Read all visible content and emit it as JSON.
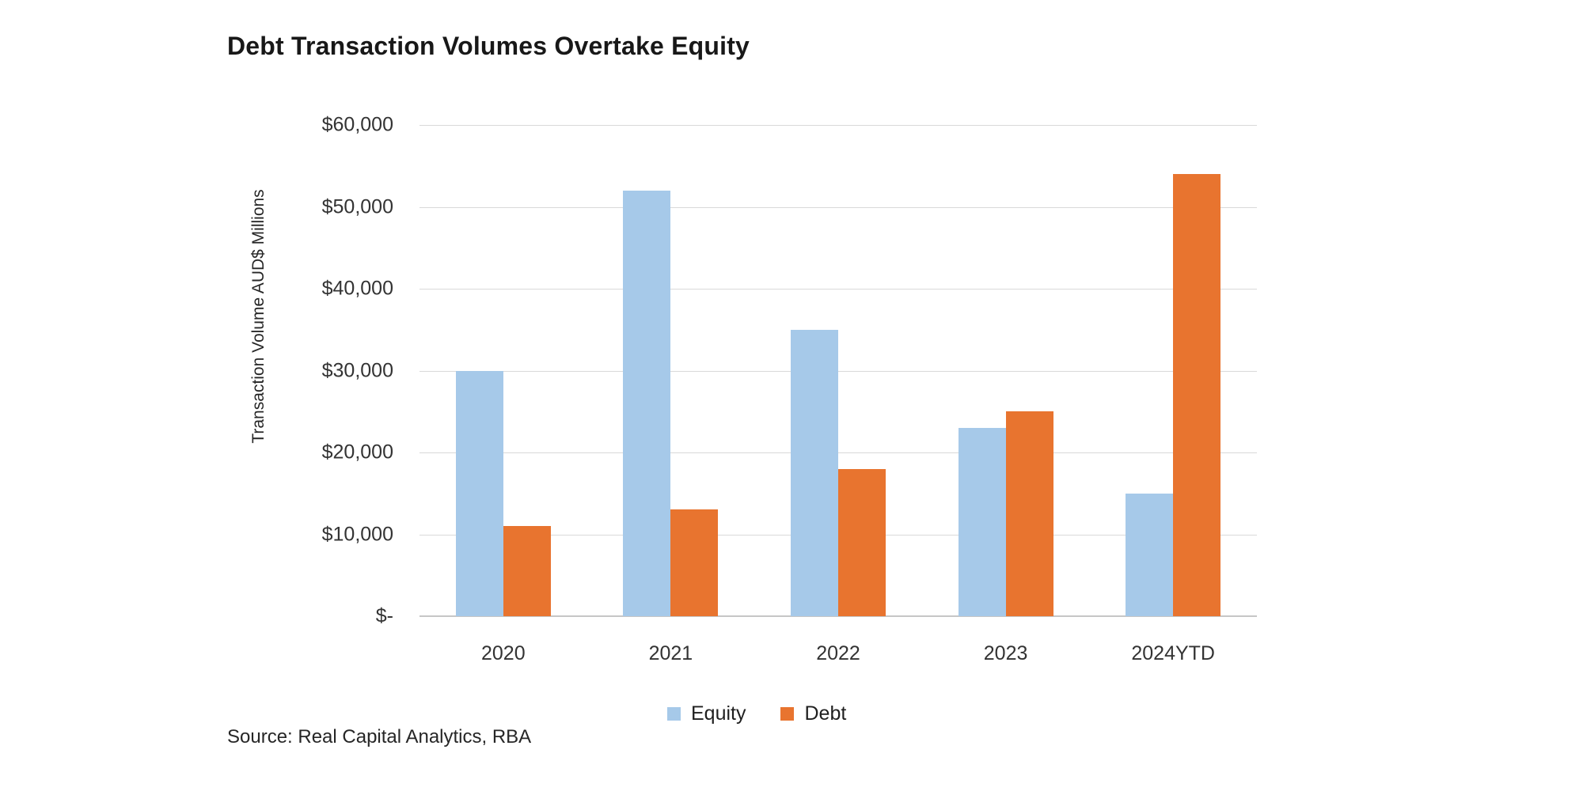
{
  "title": "Debt Transaction Volumes Overtake Equity",
  "source_note": "Source: Real Capital Analytics, RBA",
  "colors": {
    "equity": "#A6C9E9",
    "debt": "#E8742F",
    "gridline": "#D9D9D9",
    "axis_line": "#C6C6C6",
    "title_text": "#181818",
    "tick_text": "#333333"
  },
  "legend": {
    "items": [
      {
        "label": "Equity",
        "color": "#A6C9E9"
      },
      {
        "label": "Debt",
        "color": "#E8742F"
      }
    ]
  },
  "chart_data": {
    "type": "bar",
    "title": "Debt Transaction Volumes Overtake Equity",
    "categories": [
      "2020",
      "2021",
      "2022",
      "2023",
      "2024YTD"
    ],
    "series": [
      {
        "name": "Equity",
        "color": "#A6C9E9",
        "values": [
          30000,
          52000,
          35000,
          23000,
          15000
        ]
      },
      {
        "name": "Debt",
        "color": "#E8742F",
        "values": [
          11000,
          13000,
          18000,
          25000,
          54000
        ]
      }
    ],
    "xlabel": "",
    "ylabel": "Transaction Volume AUD$ Millions",
    "ylim": [
      0,
      60000
    ],
    "ytick_step": 10000,
    "ytick_labels_bottom_to_top": [
      "$-",
      "$10,000",
      "$20,000",
      "$30,000",
      "$40,000",
      "$50,000",
      "$60,000"
    ],
    "grid": true,
    "legend_position": "bottom-center"
  }
}
